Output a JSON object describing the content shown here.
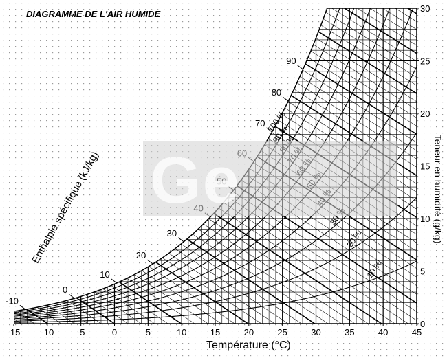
{
  "chart_data": {
    "type": "line",
    "title": "DIAGRAMME DE L'AIR HUMIDE",
    "xlabel": "Température (°C)",
    "ylabel": "Teneur en humidité (g/kg)",
    "enthalpy_label": "Enthalpie spécifique (kJ/kg)",
    "xlim": [
      -15,
      45
    ],
    "ylim": [
      0,
      30
    ],
    "x_ticks": [
      "-15",
      "-10",
      "-5",
      "0",
      "5",
      "10",
      "15",
      "20",
      "25",
      "30",
      "35",
      "40",
      "45"
    ],
    "y_ticks": [
      "0",
      "5",
      "10",
      "15",
      "20",
      "25",
      "30"
    ],
    "enthalpy_ticks": [
      "-10",
      "0",
      "10",
      "20",
      "30",
      "40",
      "50",
      "60",
      "70",
      "80",
      "90"
    ],
    "relative_humidity_labels": [
      "10 %",
      "20 %",
      "30 %",
      "40 %",
      "50 %",
      "60 %",
      "70 %",
      "80 %",
      "90 %",
      "100 %"
    ],
    "relative_humidity_curves": [
      10,
      20,
      30,
      40,
      50,
      60,
      70,
      80,
      90,
      100
    ],
    "watermark": "Ge"
  }
}
